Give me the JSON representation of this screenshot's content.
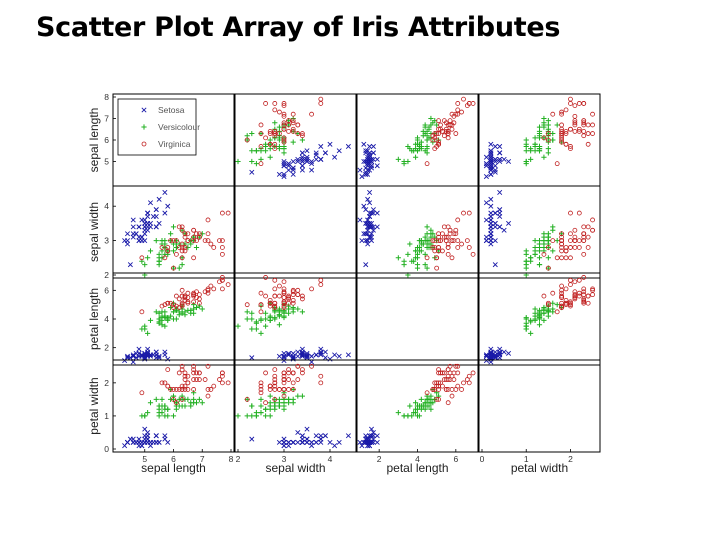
{
  "slide": {
    "title": "Scatter Plot Array of Iris Attributes"
  },
  "chart_data": {
    "type": "scatter",
    "title": "",
    "variables": [
      {
        "name": "sepal length",
        "range": [
          4,
          8
        ],
        "ticks": [
          5,
          6,
          7
        ]
      },
      {
        "name": "sepal width",
        "range": [
          2,
          4.5
        ],
        "ticks": [
          2,
          3,
          4
        ]
      },
      {
        "name": "petal length",
        "range": [
          1,
          7
        ],
        "ticks": [
          2,
          4,
          6
        ]
      },
      {
        "name": "petal width",
        "range": [
          0,
          2.6
        ],
        "ticks": [
          0,
          1,
          2
        ]
      }
    ],
    "axis_tick_labels": {
      "bottom": {
        "sepal length": [
          "5",
          "6",
          "7",
          "8"
        ],
        "sepal width": [
          "2",
          "3",
          "4"
        ],
        "petal length": [
          "2",
          "4",
          "6"
        ],
        "petal width": [
          "0",
          "1",
          "2"
        ]
      },
      "left": {
        "sepal length": [
          "5",
          "6",
          "7",
          "8"
        ],
        "sepal width": [
          "2",
          "3",
          "4"
        ],
        "petal length": [
          "2",
          "4",
          "6"
        ],
        "petal width": [
          "0",
          "1",
          "2"
        ]
      }
    },
    "grid": false,
    "legend": {
      "placement": "top-left",
      "entries": [
        {
          "label": "Setosa",
          "marker": "x",
          "color": "#1a1aa8"
        },
        {
          "label": "Versicolour",
          "marker": "+",
          "color": "#22b022"
        },
        {
          "label": "Virginica",
          "marker": "o",
          "color": "#c02020"
        }
      ]
    },
    "series": [
      {
        "name": "Setosa",
        "points": [
          [
            5.1,
            3.5,
            1.4,
            0.2
          ],
          [
            4.9,
            3.0,
            1.4,
            0.2
          ],
          [
            4.7,
            3.2,
            1.3,
            0.2
          ],
          [
            4.6,
            3.1,
            1.5,
            0.2
          ],
          [
            5.0,
            3.6,
            1.4,
            0.2
          ],
          [
            5.4,
            3.9,
            1.7,
            0.4
          ],
          [
            4.6,
            3.4,
            1.4,
            0.3
          ],
          [
            5.0,
            3.4,
            1.5,
            0.2
          ],
          [
            4.4,
            2.9,
            1.4,
            0.2
          ],
          [
            4.9,
            3.1,
            1.5,
            0.1
          ],
          [
            5.4,
            3.7,
            1.5,
            0.2
          ],
          [
            4.8,
            3.4,
            1.6,
            0.2
          ],
          [
            4.8,
            3.0,
            1.4,
            0.1
          ],
          [
            4.3,
            3.0,
            1.1,
            0.1
          ],
          [
            5.8,
            4.0,
            1.2,
            0.2
          ],
          [
            5.7,
            4.4,
            1.5,
            0.4
          ],
          [
            5.4,
            3.9,
            1.3,
            0.4
          ],
          [
            5.1,
            3.5,
            1.4,
            0.3
          ],
          [
            5.7,
            3.8,
            1.7,
            0.3
          ],
          [
            5.1,
            3.8,
            1.5,
            0.3
          ],
          [
            5.4,
            3.4,
            1.7,
            0.2
          ],
          [
            5.1,
            3.7,
            1.5,
            0.4
          ],
          [
            4.6,
            3.6,
            1.0,
            0.2
          ],
          [
            5.1,
            3.3,
            1.7,
            0.5
          ],
          [
            4.8,
            3.4,
            1.9,
            0.2
          ],
          [
            5.0,
            3.0,
            1.6,
            0.2
          ],
          [
            5.0,
            3.4,
            1.6,
            0.4
          ],
          [
            5.2,
            3.5,
            1.5,
            0.2
          ],
          [
            5.2,
            3.4,
            1.4,
            0.2
          ],
          [
            4.7,
            3.2,
            1.6,
            0.2
          ],
          [
            4.8,
            3.1,
            1.6,
            0.2
          ],
          [
            5.4,
            3.4,
            1.5,
            0.4
          ],
          [
            5.2,
            4.1,
            1.5,
            0.1
          ],
          [
            5.5,
            4.2,
            1.4,
            0.2
          ],
          [
            4.9,
            3.1,
            1.5,
            0.2
          ],
          [
            5.0,
            3.2,
            1.2,
            0.2
          ],
          [
            5.5,
            3.5,
            1.3,
            0.2
          ],
          [
            4.9,
            3.6,
            1.4,
            0.1
          ],
          [
            4.4,
            3.0,
            1.3,
            0.2
          ],
          [
            5.1,
            3.4,
            1.5,
            0.2
          ],
          [
            5.0,
            3.5,
            1.3,
            0.3
          ],
          [
            4.5,
            2.3,
            1.3,
            0.3
          ],
          [
            4.4,
            3.2,
            1.3,
            0.2
          ],
          [
            5.0,
            3.5,
            1.6,
            0.6
          ],
          [
            5.1,
            3.8,
            1.9,
            0.4
          ],
          [
            4.8,
            3.0,
            1.4,
            0.3
          ],
          [
            5.1,
            3.8,
            1.6,
            0.2
          ],
          [
            4.6,
            3.2,
            1.4,
            0.2
          ],
          [
            5.3,
            3.7,
            1.5,
            0.2
          ],
          [
            5.0,
            3.3,
            1.4,
            0.2
          ]
        ]
      },
      {
        "name": "Versicolour",
        "points": [
          [
            7.0,
            3.2,
            4.7,
            1.4
          ],
          [
            6.4,
            3.2,
            4.5,
            1.5
          ],
          [
            6.9,
            3.1,
            4.9,
            1.5
          ],
          [
            5.5,
            2.3,
            4.0,
            1.3
          ],
          [
            6.5,
            2.8,
            4.6,
            1.5
          ],
          [
            5.7,
            2.8,
            4.5,
            1.3
          ],
          [
            6.3,
            3.3,
            4.7,
            1.6
          ],
          [
            4.9,
            2.4,
            3.3,
            1.0
          ],
          [
            6.6,
            2.9,
            4.6,
            1.3
          ],
          [
            5.2,
            2.7,
            3.9,
            1.4
          ],
          [
            5.0,
            2.0,
            3.5,
            1.0
          ],
          [
            5.9,
            3.0,
            4.2,
            1.5
          ],
          [
            6.0,
            2.2,
            4.0,
            1.0
          ],
          [
            6.1,
            2.9,
            4.7,
            1.4
          ],
          [
            5.6,
            2.9,
            3.6,
            1.3
          ],
          [
            6.7,
            3.1,
            4.4,
            1.4
          ],
          [
            5.6,
            3.0,
            4.5,
            1.5
          ],
          [
            5.8,
            2.7,
            4.1,
            1.0
          ],
          [
            6.2,
            2.2,
            4.5,
            1.5
          ],
          [
            5.6,
            2.5,
            3.9,
            1.1
          ],
          [
            5.9,
            3.2,
            4.8,
            1.8
          ],
          [
            6.1,
            2.8,
            4.0,
            1.3
          ],
          [
            6.3,
            2.5,
            4.9,
            1.5
          ],
          [
            6.1,
            2.8,
            4.7,
            1.2
          ],
          [
            6.4,
            2.9,
            4.3,
            1.3
          ],
          [
            6.6,
            3.0,
            4.4,
            1.4
          ],
          [
            6.8,
            2.8,
            4.8,
            1.4
          ],
          [
            6.7,
            3.0,
            5.0,
            1.7
          ],
          [
            6.0,
            2.9,
            4.5,
            1.5
          ],
          [
            5.7,
            2.6,
            3.5,
            1.0
          ],
          [
            5.5,
            2.4,
            3.8,
            1.1
          ],
          [
            5.5,
            2.4,
            3.7,
            1.0
          ],
          [
            5.8,
            2.7,
            3.9,
            1.2
          ],
          [
            6.0,
            2.7,
            5.1,
            1.6
          ],
          [
            5.4,
            3.0,
            4.5,
            1.5
          ],
          [
            6.0,
            3.4,
            4.5,
            1.6
          ],
          [
            6.7,
            3.1,
            4.7,
            1.5
          ],
          [
            6.3,
            2.3,
            4.4,
            1.3
          ],
          [
            5.6,
            3.0,
            4.1,
            1.3
          ],
          [
            5.5,
            2.5,
            4.0,
            1.3
          ],
          [
            5.5,
            2.6,
            4.4,
            1.2
          ],
          [
            6.1,
            3.0,
            4.6,
            1.4
          ],
          [
            5.8,
            2.6,
            4.0,
            1.2
          ],
          [
            5.0,
            2.3,
            3.3,
            1.0
          ],
          [
            5.6,
            2.7,
            4.2,
            1.3
          ],
          [
            5.7,
            3.0,
            4.2,
            1.2
          ],
          [
            5.7,
            2.9,
            4.2,
            1.3
          ],
          [
            6.2,
            2.9,
            4.3,
            1.3
          ],
          [
            5.1,
            2.5,
            3.0,
            1.1
          ],
          [
            5.7,
            2.8,
            4.1,
            1.3
          ]
        ]
      },
      {
        "name": "Virginica",
        "points": [
          [
            6.3,
            3.3,
            6.0,
            2.5
          ],
          [
            5.8,
            2.7,
            5.1,
            1.9
          ],
          [
            7.1,
            3.0,
            5.9,
            2.1
          ],
          [
            6.3,
            2.9,
            5.6,
            1.8
          ],
          [
            6.5,
            3.0,
            5.8,
            2.2
          ],
          [
            7.6,
            3.0,
            6.6,
            2.1
          ],
          [
            4.9,
            2.5,
            4.5,
            1.7
          ],
          [
            7.3,
            2.9,
            6.3,
            1.8
          ],
          [
            6.7,
            2.5,
            5.8,
            1.8
          ],
          [
            7.2,
            3.6,
            6.1,
            2.5
          ],
          [
            6.5,
            3.2,
            5.1,
            2.0
          ],
          [
            6.4,
            2.7,
            5.3,
            1.9
          ],
          [
            6.8,
            3.0,
            5.5,
            2.1
          ],
          [
            5.7,
            2.5,
            5.0,
            2.0
          ],
          [
            5.8,
            2.8,
            5.1,
            2.4
          ],
          [
            6.4,
            3.2,
            5.3,
            2.3
          ],
          [
            6.5,
            3.0,
            5.5,
            1.8
          ],
          [
            7.7,
            3.8,
            6.7,
            2.2
          ],
          [
            7.7,
            2.6,
            6.9,
            2.3
          ],
          [
            6.0,
            2.2,
            5.0,
            1.5
          ],
          [
            6.9,
            3.2,
            5.7,
            2.3
          ],
          [
            5.6,
            2.8,
            4.9,
            2.0
          ],
          [
            7.7,
            2.8,
            6.7,
            2.0
          ],
          [
            6.3,
            2.7,
            4.9,
            1.8
          ],
          [
            6.7,
            3.3,
            5.7,
            2.1
          ],
          [
            7.2,
            3.2,
            6.0,
            1.8
          ],
          [
            6.2,
            2.8,
            4.8,
            1.8
          ],
          [
            6.1,
            3.0,
            4.9,
            1.8
          ],
          [
            6.4,
            2.8,
            5.6,
            2.1
          ],
          [
            7.2,
            3.0,
            5.8,
            1.6
          ],
          [
            7.4,
            2.8,
            6.1,
            1.9
          ],
          [
            7.9,
            3.8,
            6.4,
            2.0
          ],
          [
            6.4,
            2.8,
            5.6,
            2.2
          ],
          [
            6.3,
            2.8,
            5.1,
            1.5
          ],
          [
            6.1,
            2.6,
            5.6,
            1.4
          ],
          [
            7.7,
            3.0,
            6.1,
            2.3
          ],
          [
            6.3,
            3.4,
            5.6,
            2.4
          ],
          [
            6.4,
            3.1,
            5.5,
            1.8
          ],
          [
            6.0,
            3.0,
            4.8,
            1.8
          ],
          [
            6.9,
            3.1,
            5.4,
            2.1
          ],
          [
            6.7,
            3.1,
            5.6,
            2.4
          ],
          [
            6.9,
            3.1,
            5.1,
            2.3
          ],
          [
            5.8,
            2.7,
            5.1,
            1.9
          ],
          [
            6.8,
            3.2,
            5.9,
            2.3
          ],
          [
            6.7,
            3.3,
            5.7,
            2.5
          ],
          [
            6.7,
            3.0,
            5.2,
            2.3
          ],
          [
            6.3,
            2.5,
            5.0,
            1.9
          ],
          [
            6.5,
            3.0,
            5.2,
            2.0
          ],
          [
            6.2,
            3.4,
            5.4,
            2.3
          ],
          [
            5.9,
            3.0,
            5.1,
            1.8
          ]
        ]
      }
    ]
  }
}
